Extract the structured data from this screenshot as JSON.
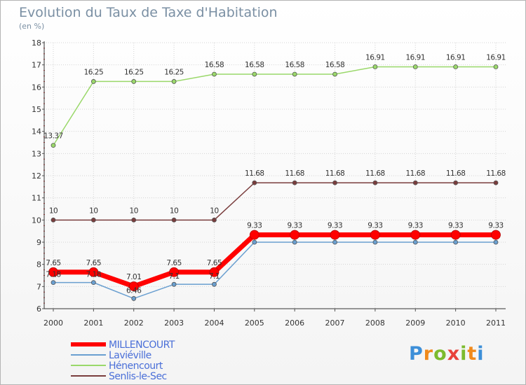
{
  "title": "Evolution du Taux de Taxe d'Habitation",
  "subtitle": "(en %)",
  "logo_text": "Proxiti",
  "chart_data": {
    "type": "line",
    "x": [
      "2000",
      "2001",
      "2002",
      "2003",
      "2004",
      "2005",
      "2006",
      "2007",
      "2008",
      "2009",
      "2010",
      "2011"
    ],
    "yticks": [
      "6",
      "7",
      "8",
      "9",
      "10",
      "11",
      "12",
      "13",
      "14",
      "15",
      "16",
      "17",
      "18"
    ],
    "ylim": [
      6,
      18
    ],
    "legend_position": "bottom-left",
    "series": [
      {
        "name": "MILLENCOURT",
        "color": "#ff0000",
        "values": [
          7.65,
          7.65,
          7.01,
          7.65,
          7.65,
          9.33,
          9.33,
          9.33,
          9.33,
          9.33,
          9.33,
          9.33
        ],
        "labels": [
          "7.65",
          "7.65",
          "7.01",
          "7.65",
          "7.65",
          "9.33",
          "9.33",
          "9.33",
          "9.33",
          "9.33",
          "9.33",
          "9.33"
        ]
      },
      {
        "name": "Laviéville",
        "color": "#6a9fd0",
        "values": [
          7.18,
          7.18,
          6.46,
          7.1,
          7.1,
          9.0,
          9.0,
          9.0,
          9.0,
          9.0,
          9.0,
          9.0
        ],
        "labels": [
          "7.18",
          "7.18",
          "6.46",
          "7.1",
          "7.1",
          "",
          "",
          "",
          "",
          "",
          "",
          ""
        ]
      },
      {
        "name": "Hénencourt",
        "color": "#9ad86a",
        "values": [
          13.37,
          16.25,
          16.25,
          16.25,
          16.58,
          16.58,
          16.58,
          16.58,
          16.91,
          16.91,
          16.91,
          16.91
        ],
        "labels": [
          "13.37",
          "16.25",
          "16.25",
          "16.25",
          "16.58",
          "16.58",
          "16.58",
          "16.58",
          "16.91",
          "16.91",
          "16.91",
          "16.91"
        ]
      },
      {
        "name": "Senlis-le-Sec",
        "color": "#7a3d3d",
        "values": [
          10,
          10,
          10,
          10,
          10,
          11.68,
          11.68,
          11.68,
          11.68,
          11.68,
          11.68,
          11.68
        ],
        "labels": [
          "10",
          "10",
          "10",
          "10",
          "10",
          "11.68",
          "11.68",
          "11.68",
          "11.68",
          "11.68",
          "11.68",
          "11.68"
        ]
      }
    ]
  }
}
